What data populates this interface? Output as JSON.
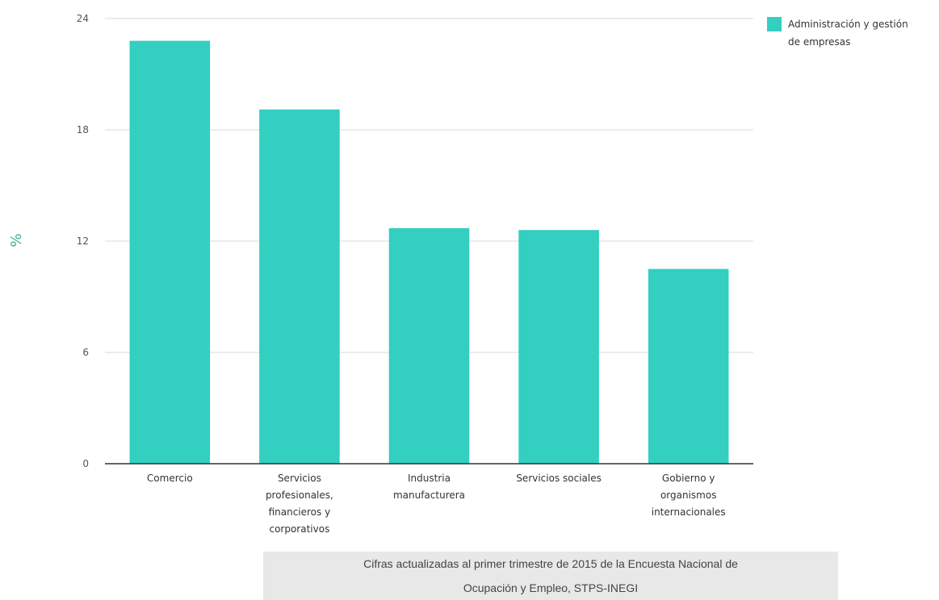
{
  "chart_data": {
    "type": "bar",
    "categories": [
      [
        "Comercio"
      ],
      [
        "Servicios",
        "profesionales,",
        "financieros y",
        "corporativos"
      ],
      [
        "Industria",
        "manufacturera"
      ],
      [
        "Servicios sociales"
      ],
      [
        "Gobierno y",
        "organismos",
        "internacionales"
      ]
    ],
    "series": [
      {
        "name": "Administración y gestión de empresas",
        "legend_lines": [
          "Administración y gestión",
          "de empresas"
        ],
        "color": "#33cfc0",
        "values": [
          22.8,
          19.1,
          12.7,
          12.6,
          10.5
        ]
      }
    ],
    "ylabel": "%",
    "ylim": [
      0,
      24
    ],
    "yticks": [
      0,
      6,
      12,
      18,
      24
    ],
    "grid": true,
    "legend": "top-right"
  },
  "note": {
    "line1": "Cifras actualizadas al primer trimestre de 2015 de la Encuesta Nacional de",
    "line2": "Ocupación y Empleo, STPS-INEGI"
  }
}
